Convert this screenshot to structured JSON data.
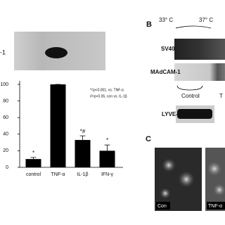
{
  "panel_a": {
    "blot_label": "-1"
  },
  "chart_data": {
    "type": "bar",
    "categories": [
      "control",
      "TNF-α",
      "IL-1β",
      "IFN-γ"
    ],
    "values": [
      10,
      100,
      33,
      20
    ],
    "errors": [
      2,
      0,
      5,
      7
    ],
    "color": "#000000",
    "ylim": [
      0,
      100
    ],
    "yticks": [
      0,
      20,
      40,
      60,
      80,
      100
    ],
    "annotations": [
      {
        "category": "control",
        "text": "*"
      },
      {
        "category": "IL-1β",
        "text": "*#"
      },
      {
        "category": "IFN-γ",
        "text": "*"
      }
    ],
    "legend_notes": [
      "*=p<0.001, vs. TNF-α",
      "#=p<0.05, con vs. IL-1β"
    ]
  },
  "panel_b": {
    "label": "B",
    "temperatures": [
      "33° C",
      "37° C"
    ],
    "rows": [
      "SV40",
      "MAdCAM-1",
      "LYVE-1"
    ],
    "groups": [
      "Control",
      "T"
    ]
  },
  "panel_c": {
    "label": "C",
    "images": [
      "Con",
      "TNF-α"
    ]
  }
}
